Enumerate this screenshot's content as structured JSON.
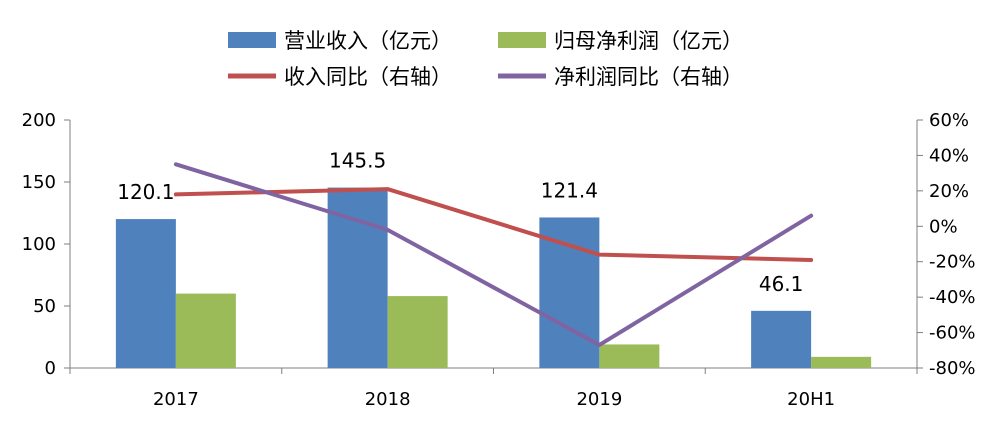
{
  "chart_data": {
    "type": "bar",
    "categories": [
      "2017",
      "2018",
      "2019",
      "20H1"
    ],
    "series": [
      {
        "name": "营业收入（亿元）",
        "kind": "bar",
        "axis": "left",
        "color": "#4f81bd",
        "values": [
          120.1,
          145.5,
          121.4,
          46.1
        ],
        "labels": [
          "120.1",
          "145.5",
          "121.4",
          "46.1"
        ]
      },
      {
        "name": "归母净利润（亿元）",
        "kind": "bar",
        "axis": "left",
        "color": "#9bbb59",
        "values": [
          60,
          58,
          19,
          9
        ]
      },
      {
        "name": "收入同比（右轴）",
        "kind": "line",
        "axis": "right",
        "color": "#c0504d",
        "values": [
          18,
          21,
          -16,
          -19
        ]
      },
      {
        "name": "净利润同比（右轴）",
        "kind": "line",
        "axis": "right",
        "color": "#8064a2",
        "values": [
          35,
          -2,
          -67,
          6
        ]
      }
    ],
    "y_left": {
      "min": 0,
      "max": 200,
      "ticks": [
        "0",
        "50",
        "100",
        "150",
        "200"
      ]
    },
    "y_right": {
      "min": -80,
      "max": 60,
      "ticks": [
        "-80%",
        "-60%",
        "-40%",
        "-20%",
        "0%",
        "20%",
        "40%",
        "60%"
      ]
    },
    "legend_position": "top",
    "grid": false
  }
}
